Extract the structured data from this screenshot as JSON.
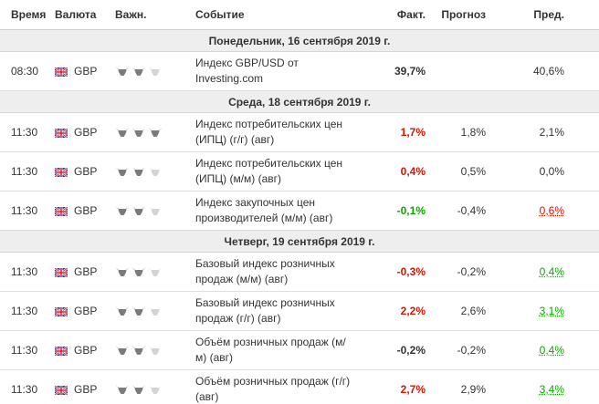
{
  "columns": {
    "time": "Время",
    "currency": "Валюта",
    "importance": "Важн.",
    "event": "Событие",
    "actual": "Факт.",
    "forecast": "Прогноз",
    "previous": "Пред."
  },
  "colors": {
    "negative": "#d91400",
    "positive": "#0ea600",
    "bull_active": "#7b7b7b",
    "bull_inactive": "#d4d4d4",
    "day_row_bg": "#eeeeee"
  },
  "days": [
    {
      "label": "Понедельник, 16 сентября 2019 г.",
      "events": [
        {
          "time": "08:30",
          "currency": "GBP",
          "flag_icon": "uk-flag-icon",
          "importance": 2,
          "event_line1": "Индекс GBP/USD от",
          "event_line2": "Investing.com",
          "actual": "39,7%",
          "actual_status": "neutral",
          "forecast": "",
          "previous": "40,6%",
          "previous_status": "neutral"
        }
      ]
    },
    {
      "label": "Среда, 18 сентября 2019 г.",
      "events": [
        {
          "time": "11:30",
          "currency": "GBP",
          "flag_icon": "uk-flag-icon",
          "importance": 3,
          "event_line1": "Индекс потребительских цен",
          "event_line2": "(ИПЦ) (г/г) (авг)",
          "actual": "1,7%",
          "actual_status": "negative",
          "forecast": "1,8%",
          "previous": "2,1%",
          "previous_status": "neutral"
        },
        {
          "time": "11:30",
          "currency": "GBP",
          "flag_icon": "uk-flag-icon",
          "importance": 2,
          "event_line1": "Индекс потребительских цен",
          "event_line2": "(ИПЦ) (м/м) (авг)",
          "actual": "0,4%",
          "actual_status": "negative",
          "forecast": "0,5%",
          "previous": "0,0%",
          "previous_status": "neutral"
        },
        {
          "time": "11:30",
          "currency": "GBP",
          "flag_icon": "uk-flag-icon",
          "importance": 2,
          "event_line1": "Индекс закупочных цен",
          "event_line2": "производителей (м/м) (авг)",
          "actual": "-0,1%",
          "actual_status": "positive",
          "forecast": "-0,4%",
          "previous": "0,6%",
          "previous_status": "negative"
        }
      ]
    },
    {
      "label": "Четверг, 19 сентября 2019 г.",
      "events": [
        {
          "time": "11:30",
          "currency": "GBP",
          "flag_icon": "uk-flag-icon",
          "importance": 2,
          "event_line1": "Базовый индекс розничных",
          "event_line2": "продаж (м/м) (авг)",
          "actual": "-0,3%",
          "actual_status": "negative",
          "forecast": "-0,2%",
          "previous": "0,4%",
          "previous_status": "positive"
        },
        {
          "time": "11:30",
          "currency": "GBP",
          "flag_icon": "uk-flag-icon",
          "importance": 2,
          "event_line1": "Базовый индекс розничных",
          "event_line2": "продаж (г/г) (авг)",
          "actual": "2,2%",
          "actual_status": "negative",
          "forecast": "2,6%",
          "previous": "3,1%",
          "previous_status": "positive"
        },
        {
          "time": "11:30",
          "currency": "GBP",
          "flag_icon": "uk-flag-icon",
          "importance": 2,
          "event_line1": "Объём розничных продаж (м/",
          "event_line2": "м) (авг)",
          "actual": "-0,2%",
          "actual_status": "neutral",
          "forecast": "-0,2%",
          "previous": "0,4%",
          "previous_status": "positive"
        },
        {
          "time": "11:30",
          "currency": "GBP",
          "flag_icon": "uk-flag-icon",
          "importance": 2,
          "event_line1": "Объём розничных продаж (г/г)",
          "event_line2": "(авг)",
          "actual": "2,7%",
          "actual_status": "negative",
          "forecast": "2,9%",
          "previous": "3,4%",
          "previous_status": "positive"
        }
      ]
    }
  ]
}
